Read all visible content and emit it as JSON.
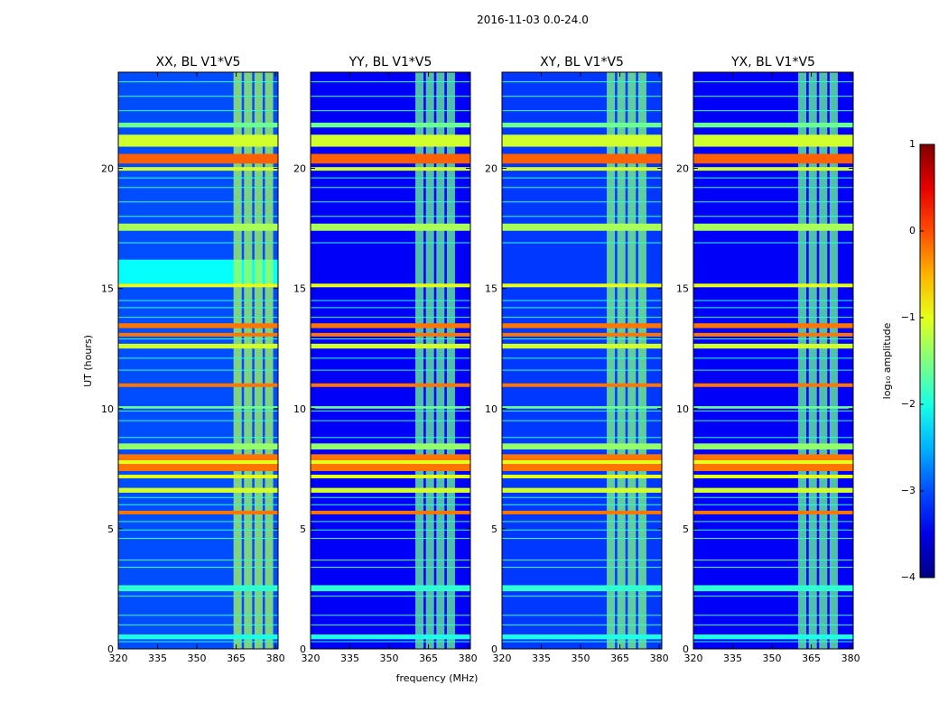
{
  "chart_data": {
    "type": "heatmap",
    "suptitle": "2016-11-03 0.0-24.0",
    "xlabel": "frequency (MHz)",
    "ylabel": "UT (hours)",
    "xlim": [
      320,
      381
    ],
    "ylim": [
      0,
      24
    ],
    "xticks": [
      320,
      335,
      350,
      365,
      380
    ],
    "yticks": [
      0,
      5,
      10,
      15,
      20
    ],
    "colormap": "jet",
    "colorbar": {
      "label": "log₁₀ amplitude",
      "range": [
        -4,
        1
      ],
      "ticks": [
        1,
        0,
        -1,
        -2,
        -3,
        -4
      ],
      "tick_labels": [
        "1",
        "0",
        "−1",
        "−2",
        "−3",
        "−4"
      ]
    },
    "panels": [
      {
        "title": "XX, BL V1*V5",
        "background": -3.0,
        "rfi_band": [
          364,
          380
        ],
        "rfi_level": -1.3
      },
      {
        "title": "YY, BL V1*V5",
        "background": -3.4,
        "rfi_band": [
          360,
          376
        ],
        "rfi_level": -1.6
      },
      {
        "title": "XY, BL V1*V5",
        "background": -3.1,
        "rfi_band": [
          360,
          376
        ],
        "rfi_level": -1.5
      },
      {
        "title": "YX, BL V1*V5",
        "background": -3.4,
        "rfi_band": [
          360,
          376
        ],
        "rfi_level": -1.6
      }
    ],
    "time_bands": [
      {
        "t0": 0.4,
        "t1": 0.6,
        "level": -2.0
      },
      {
        "t0": 2.4,
        "t1": 2.65,
        "level": -1.9
      },
      {
        "t0": 5.6,
        "t1": 5.75,
        "level": -0.2
      },
      {
        "t0": 6.5,
        "t1": 6.7,
        "level": -1.1
      },
      {
        "t0": 7.1,
        "t1": 7.25,
        "level": -1.0
      },
      {
        "t0": 7.4,
        "t1": 7.7,
        "level": -0.2
      },
      {
        "t0": 7.7,
        "t1": 7.85,
        "level": -1.0
      },
      {
        "t0": 7.85,
        "t1": 8.1,
        "level": -0.2
      },
      {
        "t0": 8.3,
        "t1": 8.55,
        "level": -1.4
      },
      {
        "t0": 10.0,
        "t1": 10.1,
        "level": -1.6
      },
      {
        "t0": 10.9,
        "t1": 11.05,
        "level": -0.2
      },
      {
        "t0": 12.5,
        "t1": 12.7,
        "level": -1.1
      },
      {
        "t0": 13.0,
        "t1": 13.15,
        "level": -0.2
      },
      {
        "t0": 13.35,
        "t1": 13.55,
        "level": -0.2
      },
      {
        "t0": 15.05,
        "t1": 15.2,
        "level": -1.0
      },
      {
        "t0": 17.4,
        "t1": 17.7,
        "level": -1.3
      },
      {
        "t0": 19.9,
        "t1": 20.05,
        "level": -1.1
      },
      {
        "t0": 20.2,
        "t1": 20.6,
        "level": -0.1
      },
      {
        "t0": 20.9,
        "t1": 21.4,
        "level": -1.1
      },
      {
        "t0": 21.7,
        "t1": 21.9,
        "level": -1.6
      }
    ],
    "thin_lines": [
      0.3,
      1.0,
      1.4,
      2.2,
      3.4,
      3.7,
      4.6,
      4.95,
      5.3,
      6.0,
      6.3,
      8.8,
      9.5,
      9.9,
      11.6,
      12.1,
      12.9,
      13.8,
      14.2,
      14.5,
      16.9,
      18.0,
      18.6,
      19.2,
      19.6,
      22.4,
      23.0,
      23.6
    ],
    "xx_enhanced_period": {
      "t0": 15.2,
      "t1": 16.2,
      "level": -2.1
    }
  }
}
